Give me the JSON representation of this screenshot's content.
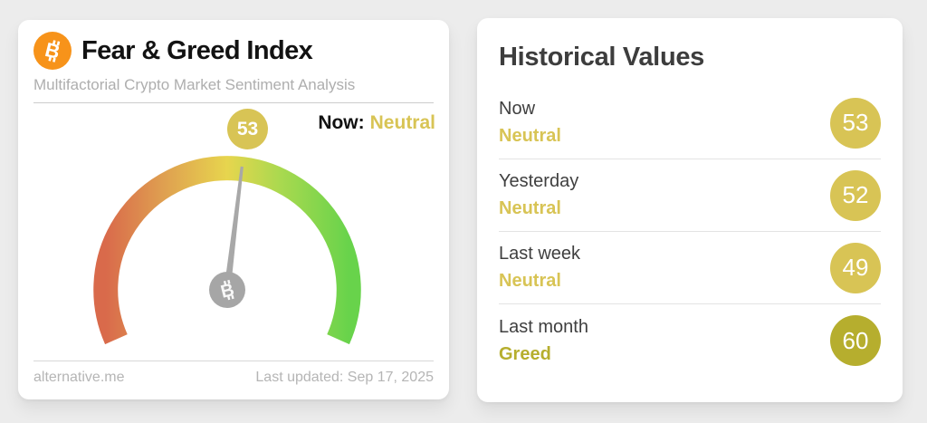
{
  "page": {
    "background_color": "#ececec"
  },
  "gauge_card": {
    "title": "Fear & Greed Index",
    "subtitle": "Multifactorial Crypto Market Sentiment Analysis",
    "value_badge": "53",
    "now_label": "Now:",
    "now_classification": "Neutral",
    "now_classification_color": "#d8c455",
    "footer_source": "alternative.me",
    "footer_updated": "Last updated: Sep 17, 2025",
    "bitcoin_orange": "#f7931a"
  },
  "historical_card": {
    "title": "Historical Values",
    "rows": [
      {
        "label": "Now",
        "classification": "Neutral",
        "value": "53",
        "color": "#d8c455"
      },
      {
        "label": "Yesterday",
        "classification": "Neutral",
        "value": "52",
        "color": "#d8c455"
      },
      {
        "label": "Last week",
        "classification": "Neutral",
        "value": "49",
        "color": "#d8c455"
      },
      {
        "label": "Last month",
        "classification": "Greed",
        "value": "60",
        "color": "#b6ae2e"
      }
    ]
  },
  "chart_data": {
    "type": "gauge",
    "title": "Fear & Greed Index",
    "value": 53,
    "classification": "Neutral",
    "range": [
      0,
      100
    ],
    "start_angle_deg": -114,
    "end_angle_deg": 114,
    "scale_colors": [
      "#d96a4b",
      "#dfa050",
      "#e7d54e",
      "#a9d94f",
      "#68d34b"
    ],
    "needle_color": "#a8a8a8",
    "hub_color": "#a6a6a6",
    "historical_series": [
      {
        "label": "Now",
        "value": 53,
        "classification": "Neutral"
      },
      {
        "label": "Yesterday",
        "value": 52,
        "classification": "Neutral"
      },
      {
        "label": "Last week",
        "value": 49,
        "classification": "Neutral"
      },
      {
        "label": "Last month",
        "value": 60,
        "classification": "Greed"
      }
    ]
  }
}
